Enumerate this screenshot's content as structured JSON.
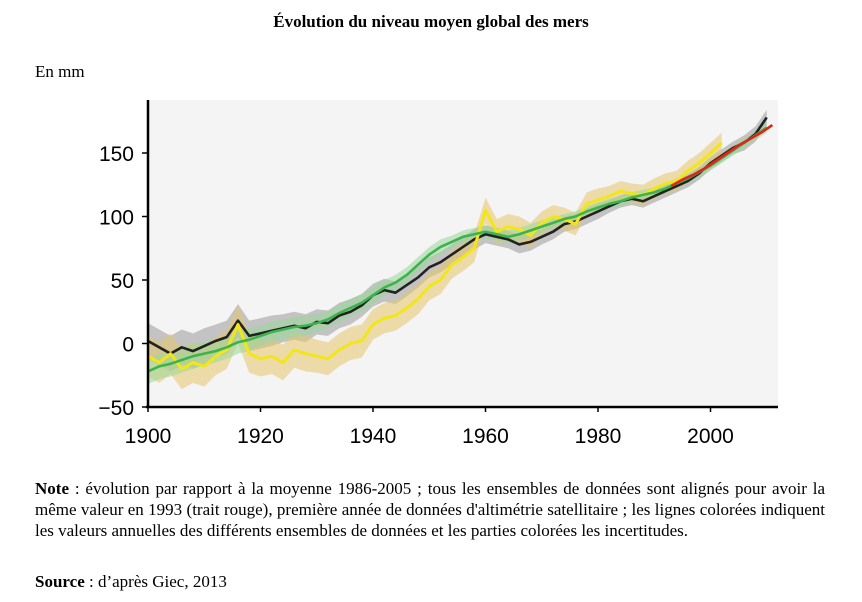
{
  "title": "Évolution du niveau moyen global des mers",
  "unit_label": "En mm",
  "note": {
    "label": "Note",
    "text": " : évolution par rapport à la moyenne 1986-2005 ; tous les ensembles de données sont alignés pour avoir la même valeur en 1993 (trait rouge), première année de données d'altimétrie satellitaire ; les lignes colorées indiquent les valeurs annuelles des différents ensembles de données et les parties colorées les incertitudes."
  },
  "source": {
    "label": "Source",
    "text": " : d’après Giec, 2013"
  },
  "chart_data": {
    "type": "line",
    "title": "Évolution du niveau moyen global des mers",
    "xlabel": "",
    "ylabel": "En mm",
    "xlim": [
      1900,
      2012
    ],
    "ylim": [
      -50,
      190
    ],
    "x_ticks": [
      1900,
      1920,
      1940,
      1960,
      1980,
      2000
    ],
    "y_ticks": [
      -50,
      0,
      50,
      100,
      150
    ],
    "grid": false,
    "series": [
      {
        "color": "#222222",
        "band_color": "#9a9a9a",
        "x": [
          1900,
          1902,
          1904,
          1906,
          1908,
          1910,
          1912,
          1914,
          1916,
          1918,
          1920,
          1922,
          1924,
          1926,
          1928,
          1930,
          1932,
          1934,
          1936,
          1938,
          1940,
          1942,
          1944,
          1946,
          1948,
          1950,
          1952,
          1954,
          1956,
          1958,
          1960,
          1962,
          1964,
          1966,
          1968,
          1970,
          1972,
          1974,
          1976,
          1978,
          1980,
          1982,
          1984,
          1986,
          1988,
          1990,
          1992,
          1994,
          1996,
          1998,
          2000,
          2002,
          2004,
          2006,
          2008,
          2010
        ],
        "y": [
          2,
          -3,
          -8,
          -3,
          -6,
          -2,
          2,
          5,
          18,
          6,
          8,
          10,
          12,
          14,
          12,
          17,
          16,
          22,
          25,
          30,
          38,
          42,
          40,
          46,
          52,
          60,
          64,
          70,
          76,
          82,
          86,
          84,
          82,
          78,
          80,
          84,
          88,
          94,
          96,
          100,
          104,
          108,
          112,
          114,
          112,
          116,
          120,
          124,
          128,
          134,
          142,
          148,
          154,
          158,
          165,
          178
        ],
        "band": [
          14,
          14,
          14,
          14,
          14,
          14,
          13,
          13,
          13,
          12,
          12,
          12,
          11,
          11,
          11,
          10,
          10,
          10,
          10,
          9,
          9,
          9,
          9,
          9,
          8,
          8,
          8,
          8,
          8,
          8,
          7,
          7,
          7,
          7,
          7,
          6,
          6,
          6,
          6,
          6,
          6,
          5,
          5,
          5,
          5,
          5,
          5,
          5,
          5,
          5,
          5,
          5,
          5,
          6,
          6,
          6
        ]
      },
      {
        "color": "#f2e61a",
        "band_color": "#e6c76a",
        "x": [
          1900,
          1902,
          1904,
          1906,
          1908,
          1910,
          1912,
          1914,
          1916,
          1918,
          1920,
          1922,
          1924,
          1926,
          1928,
          1930,
          1932,
          1934,
          1936,
          1938,
          1940,
          1942,
          1944,
          1946,
          1948,
          1950,
          1952,
          1954,
          1956,
          1958,
          1960,
          1962,
          1964,
          1966,
          1968,
          1970,
          1972,
          1974,
          1976,
          1978,
          1980,
          1982,
          1984,
          1986,
          1988,
          1990,
          1992,
          1994,
          1996,
          1998,
          2000,
          2002
        ],
        "y": [
          -10,
          -15,
          -8,
          -20,
          -15,
          -18,
          -10,
          -5,
          15,
          -8,
          -12,
          -10,
          -15,
          -5,
          -8,
          -10,
          -12,
          -5,
          0,
          2,
          15,
          20,
          22,
          28,
          35,
          45,
          50,
          62,
          68,
          75,
          105,
          88,
          92,
          90,
          85,
          95,
          100,
          98,
          94,
          110,
          113,
          116,
          120,
          118,
          117,
          122,
          126,
          128,
          136,
          142,
          150,
          158
        ],
        "band": [
          16,
          16,
          16,
          16,
          16,
          16,
          15,
          15,
          15,
          15,
          14,
          14,
          14,
          14,
          14,
          13,
          13,
          13,
          13,
          13,
          12,
          12,
          12,
          12,
          12,
          11,
          11,
          11,
          11,
          11,
          10,
          10,
          10,
          10,
          10,
          9,
          9,
          9,
          9,
          9,
          9,
          8,
          8,
          8,
          8,
          8,
          8,
          8,
          8,
          8,
          8,
          8
        ]
      },
      {
        "color": "#3cb44b",
        "band_color": "#9ad79a",
        "x": [
          1900,
          1902,
          1904,
          1906,
          1908,
          1910,
          1912,
          1914,
          1916,
          1918,
          1920,
          1922,
          1924,
          1926,
          1928,
          1930,
          1932,
          1934,
          1936,
          1938,
          1940,
          1942,
          1944,
          1946,
          1948,
          1950,
          1952,
          1954,
          1956,
          1958,
          1960,
          1962,
          1964,
          1966,
          1968,
          1970,
          1972,
          1974,
          1976,
          1978,
          1980,
          1982,
          1984,
          1986,
          1988,
          1990,
          1992,
          1994,
          1996,
          1998,
          2000,
          2002,
          2004,
          2006,
          2008,
          2010
        ],
        "y": [
          -22,
          -18,
          -16,
          -13,
          -10,
          -8,
          -6,
          -3,
          1,
          3,
          6,
          9,
          11,
          13,
          14,
          16,
          19,
          24,
          28,
          32,
          38,
          44,
          48,
          54,
          62,
          70,
          76,
          80,
          84,
          86,
          88,
          86,
          84,
          86,
          89,
          92,
          95,
          98,
          100,
          104,
          107,
          110,
          112,
          115,
          117,
          119,
          122,
          126,
          130,
          135,
          140,
          146,
          152,
          158,
          164,
          170
        ],
        "band": [
          10,
          10,
          10,
          10,
          10,
          9,
          9,
          9,
          9,
          9,
          8,
          8,
          8,
          8,
          8,
          7,
          7,
          7,
          7,
          7,
          7,
          6,
          6,
          6,
          6,
          6,
          6,
          5,
          5,
          5,
          5,
          5,
          5,
          5,
          5,
          5,
          4,
          4,
          4,
          4,
          4,
          4,
          4,
          4,
          4,
          4,
          4,
          4,
          4,
          4,
          4,
          4,
          4,
          4,
          4,
          4
        ]
      },
      {
        "color": "#e2231a",
        "band_color": "",
        "x": [
          1993,
          1995,
          1997,
          1999,
          2001,
          2003,
          2005,
          2007,
          2009,
          2011
        ],
        "y": [
          124,
          129,
          133,
          138,
          144,
          150,
          156,
          161,
          166,
          172
        ],
        "band": []
      }
    ]
  }
}
